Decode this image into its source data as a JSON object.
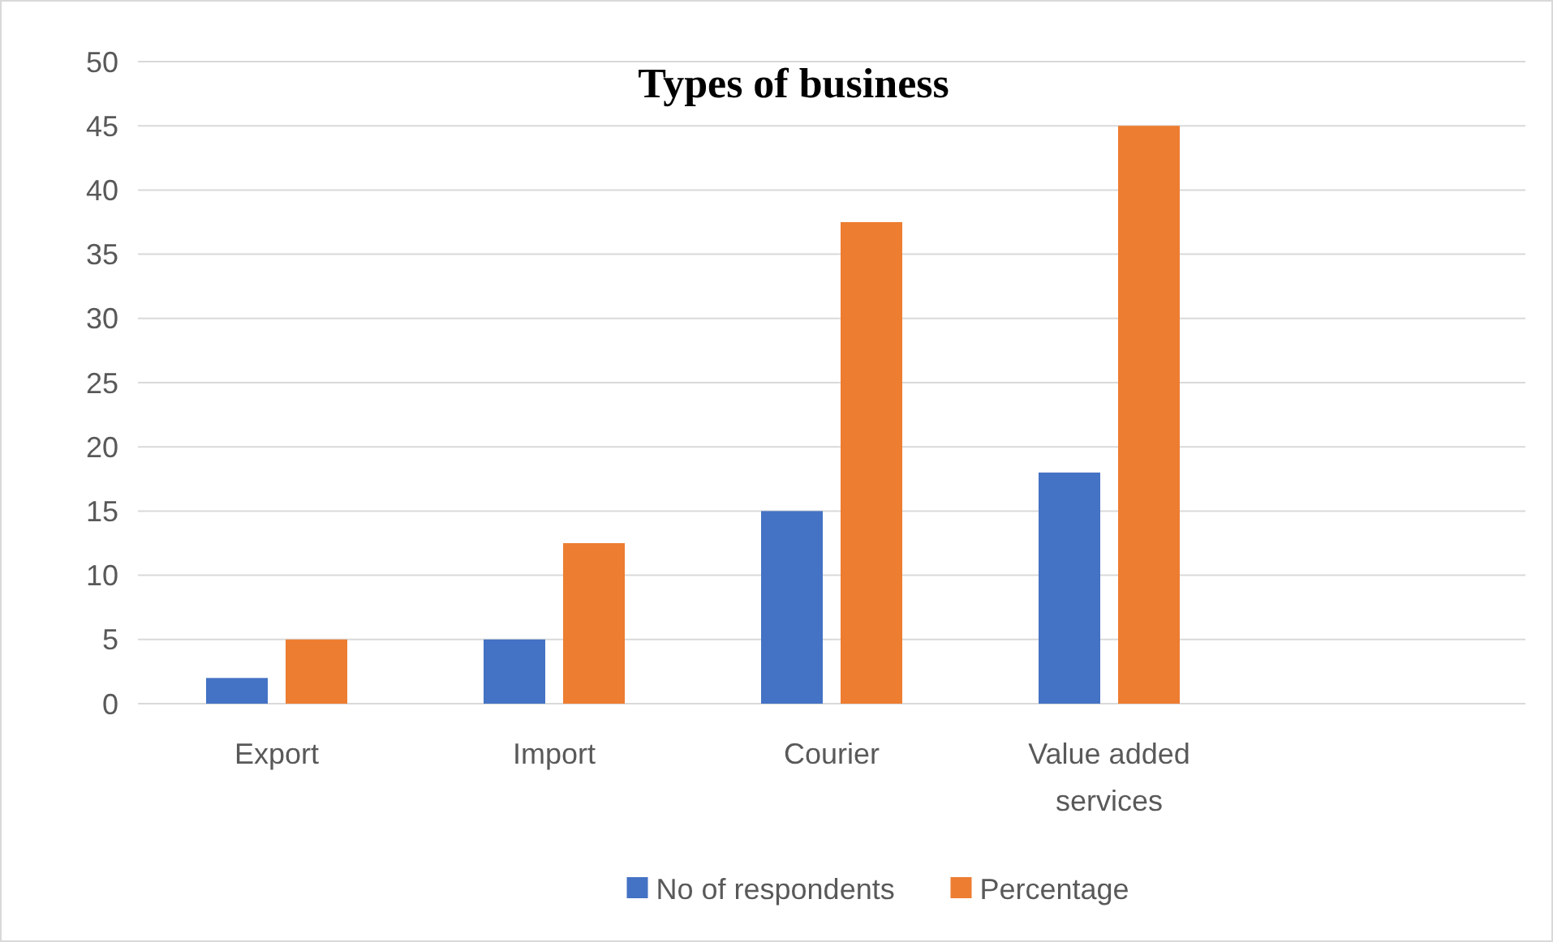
{
  "chart_data": {
    "type": "bar",
    "title": "Types of business",
    "categories": [
      "Export",
      "Import",
      "Courier",
      "Value added services",
      null
    ],
    "series": [
      {
        "name": "No of respondents",
        "color": "#4472c4",
        "values": [
          2,
          5,
          15,
          18,
          null
        ]
      },
      {
        "name": "Percentage",
        "color": "#ed7d31",
        "values": [
          5,
          12.5,
          37.5,
          45,
          null
        ]
      }
    ],
    "ylim": [
      0,
      50
    ],
    "yticks": [
      0,
      5,
      10,
      15,
      20,
      25,
      30,
      35,
      40,
      45,
      50
    ],
    "grid": "y",
    "legend": "bottom"
  }
}
